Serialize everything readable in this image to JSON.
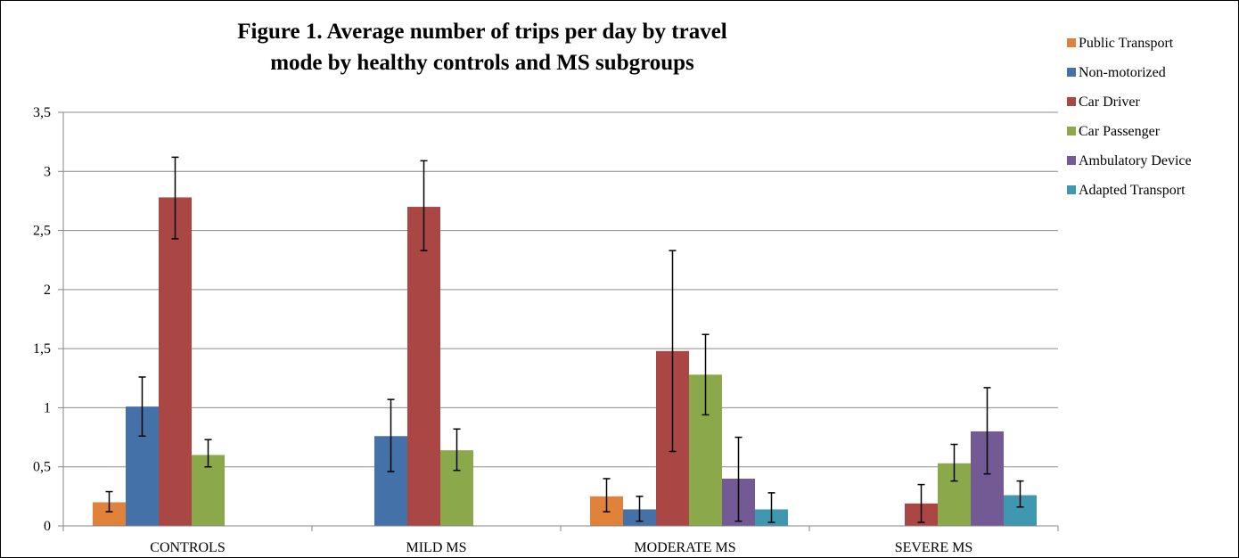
{
  "chart_data": {
    "type": "bar",
    "title_line1": "Figure 1. Average number of trips per day by travel",
    "title_line2": "mode  by healthy controls and MS subgroups",
    "categories": [
      "CONTROLS",
      "MILD  MS",
      "MODERATE MS",
      "SEVERE MS"
    ],
    "ylim": [
      0,
      3.5
    ],
    "yticks": [
      {
        "value": 0,
        "label": "0"
      },
      {
        "value": 0.5,
        "label": "0,5"
      },
      {
        "value": 1,
        "label": "1"
      },
      {
        "value": 1.5,
        "label": "1,5"
      },
      {
        "value": 2,
        "label": "2"
      },
      {
        "value": 2.5,
        "label": "2,5"
      },
      {
        "value": 3,
        "label": "3"
      },
      {
        "value": 3.5,
        "label": "3,5"
      }
    ],
    "grid": true,
    "legend_position": "right",
    "error_bars": true,
    "series": [
      {
        "name": "Public Transport",
        "color": "#E0823A",
        "values": [
          0.2,
          null,
          0.25,
          null
        ],
        "error_low": [
          0.12,
          null,
          0.12,
          null
        ],
        "error_high": [
          0.29,
          null,
          0.4,
          null
        ]
      },
      {
        "name": "Non-motorized",
        "color": "#4472A8",
        "values": [
          1.01,
          0.76,
          0.14,
          null
        ],
        "error_low": [
          0.76,
          0.46,
          0.04,
          null
        ],
        "error_high": [
          1.26,
          1.07,
          0.25,
          null
        ]
      },
      {
        "name": "Car Driver",
        "color": "#AA4744",
        "values": [
          2.78,
          2.7,
          1.48,
          0.19
        ],
        "error_low": [
          2.43,
          2.33,
          0.63,
          0.03
        ],
        "error_high": [
          3.12,
          3.09,
          2.33,
          0.35
        ]
      },
      {
        "name": "Car Passenger",
        "color": "#8BA94A",
        "values": [
          0.6,
          0.64,
          1.28,
          0.53
        ],
        "error_low": [
          0.5,
          0.47,
          0.94,
          0.38
        ],
        "error_high": [
          0.73,
          0.82,
          1.62,
          0.69
        ]
      },
      {
        "name": "Ambulatory Device",
        "color": "#735A95",
        "values": [
          null,
          null,
          0.4,
          0.8
        ],
        "error_low": [
          null,
          null,
          0.04,
          0.44
        ],
        "error_high": [
          null,
          null,
          0.75,
          1.17
        ]
      },
      {
        "name": "Adapted Transport",
        "color": "#3F98B0",
        "values": [
          null,
          null,
          0.14,
          0.26
        ],
        "error_low": [
          null,
          null,
          0.03,
          0.16
        ],
        "error_high": [
          null,
          null,
          0.28,
          0.38
        ]
      }
    ]
  }
}
